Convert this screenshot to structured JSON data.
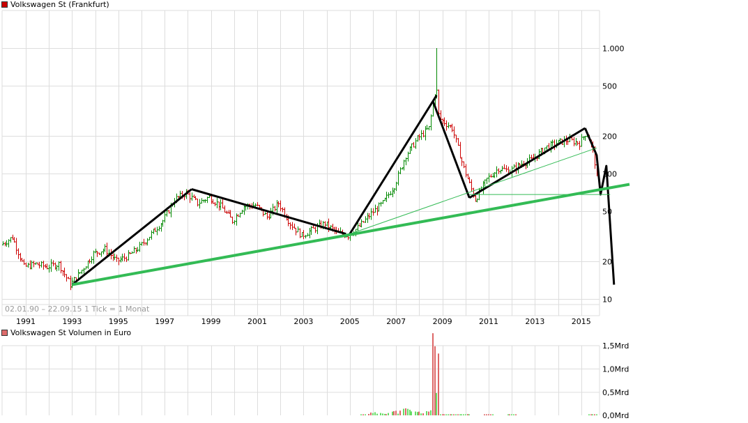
{
  "header": {
    "title": "Volkswagen St (Frankfurt)",
    "title_swatch_color": "#cc0000"
  },
  "price_pane": {
    "info_text": "02.01.90 – 22.09.15   1 Tick = 1 Monat",
    "y_ticks": [
      {
        "label": "1.000",
        "value": 1000
      },
      {
        "label": "500",
        "value": 500
      },
      {
        "label": "200",
        "value": 200
      },
      {
        "label": "100",
        "value": 100
      },
      {
        "label": "50",
        "value": 50
      },
      {
        "label": "20",
        "value": 20
      },
      {
        "label": "10",
        "value": 10
      }
    ],
    "x_ticks": [
      "1991",
      "1993",
      "1995",
      "1997",
      "1999",
      "2001",
      "2003",
      "2005",
      "2007",
      "2009",
      "2011",
      "2013",
      "2015"
    ]
  },
  "volume_pane": {
    "title": "Volkswagen St Volumen in Euro",
    "title_swatch_color": "#dd6b6b",
    "y_ticks": [
      "1,5Mrd",
      "1,0Mrd",
      "0,5Mrd",
      "0,0Mrd"
    ]
  },
  "colors": {
    "up": "#008800",
    "down": "#cc0000",
    "grid": "#dddddd",
    "trend_black": "#000000",
    "trend_green": "#33bb55",
    "vol_up": "#66dd66",
    "vol_down": "#dd6666"
  },
  "chart_data": [
    {
      "type": "ohlc",
      "title": "Volkswagen St (Frankfurt)",
      "subtitle": "02.01.90 – 22.09.15, 1 Tick = 1 Monat",
      "xlabel": "",
      "ylabel": "",
      "y_scale": "log",
      "ylim": [
        7,
        2000
      ],
      "x_range": [
        "1990-01",
        "2015-09"
      ],
      "grid": true,
      "x_tick_labels": [
        "1991",
        "1993",
        "1995",
        "1997",
        "1999",
        "2001",
        "2003",
        "2005",
        "2007",
        "2009",
        "2011",
        "2013",
        "2015"
      ],
      "y_tick_labels": [
        "1.000",
        "500",
        "200",
        "100",
        "50",
        "20",
        "10"
      ],
      "approx_close_by_half_year": {
        "x": [
          1990.0,
          1990.5,
          1991.0,
          1991.5,
          1992.0,
          1992.5,
          1993.0,
          1993.5,
          1994.0,
          1994.5,
          1995.0,
          1995.5,
          1996.0,
          1996.5,
          1997.0,
          1997.5,
          1998.0,
          1998.5,
          1999.0,
          1999.5,
          2000.0,
          2000.5,
          2001.0,
          2001.5,
          2002.0,
          2002.5,
          2003.0,
          2003.5,
          2004.0,
          2004.5,
          2005.0,
          2005.5,
          2006.0,
          2006.5,
          2007.0,
          2007.5,
          2008.0,
          2008.5,
          2008.8,
          2009.0,
          2009.5,
          2010.0,
          2010.5,
          2011.0,
          2011.5,
          2012.0,
          2012.5,
          2013.0,
          2013.5,
          2014.0,
          2014.5,
          2015.0,
          2015.3,
          2015.6,
          2015.72
        ],
        "values": [
          27,
          31,
          18,
          19,
          18,
          19,
          13,
          17,
          23,
          25,
          20,
          22,
          26,
          33,
          42,
          62,
          70,
          58,
          65,
          55,
          42,
          55,
          56,
          45,
          58,
          40,
          32,
          36,
          40,
          34,
          32,
          38,
          48,
          58,
          80,
          140,
          190,
          230,
          500,
          270,
          230,
          110,
          62,
          90,
          110,
          105,
          120,
          130,
          160,
          175,
          185,
          175,
          215,
          150,
          105
        ]
      },
      "trendlines": [
        {
          "name": "black-rise-1993-1998",
          "from": [
            "1993-01",
            13
          ],
          "to": [
            "1998-03",
            75
          ]
        },
        {
          "name": "black-fall-1998-2004",
          "from": [
            "1998-03",
            75
          ],
          "to": [
            "2004-11",
            33
          ]
        },
        {
          "name": "black-rise-2005-2008",
          "from": [
            "2005-01",
            33
          ],
          "to": [
            "2008-10",
            420
          ]
        },
        {
          "name": "black-fall-2008-2010",
          "from": [
            "2008-08",
            380
          ],
          "to": [
            "2010-03",
            64
          ]
        },
        {
          "name": "black-rise-2010-2015",
          "from": [
            "2010-03",
            64
          ],
          "to": [
            "2015-03",
            230
          ]
        },
        {
          "name": "black-projection-2015",
          "points": [
            [
              "2015-03",
              230
            ],
            [
              "2015-09",
              140
            ],
            [
              "2015-11",
              68
            ],
            [
              "2016-02",
              115
            ],
            [
              "2016-06",
              13
            ]
          ]
        },
        {
          "name": "green-long-support",
          "from": [
            "1993-01",
            13
          ],
          "to": [
            "2017-02",
            82
          ],
          "width": "thick"
        },
        {
          "name": "green-thin-support-2005",
          "from": [
            "2005-01",
            33
          ],
          "to": [
            "2015-09",
            160
          ]
        },
        {
          "name": "green-horizontal-2010",
          "from": [
            "2010-03",
            68
          ],
          "to": [
            "2016-04",
            68
          ]
        }
      ]
    },
    {
      "type": "bar",
      "title": "Volkswagen St Volumen in Euro",
      "y_tick_labels": [
        "1,5Mrd",
        "1,0Mrd",
        "0,5Mrd",
        "0,0Mrd"
      ],
      "ylim": [
        0,
        1.5
      ],
      "unit": "Mrd EUR",
      "notable": [
        {
          "x": "2008-10",
          "value": 1.33
        },
        {
          "x": "2008-09",
          "value": 0.48
        }
      ],
      "approx_values_by_half_year": {
        "x": [
          2005.5,
          2006.0,
          2006.5,
          2007.0,
          2007.5,
          2008.0,
          2008.5,
          2008.75,
          2008.83,
          2009.0,
          2010.0,
          2011.0,
          2012.0,
          2015.5
        ],
        "values": [
          0.01,
          0.05,
          0.06,
          0.08,
          0.12,
          0.07,
          0.1,
          0.48,
          1.33,
          0.02,
          0.02,
          0.01,
          0.01,
          0.01
        ]
      }
    }
  ]
}
